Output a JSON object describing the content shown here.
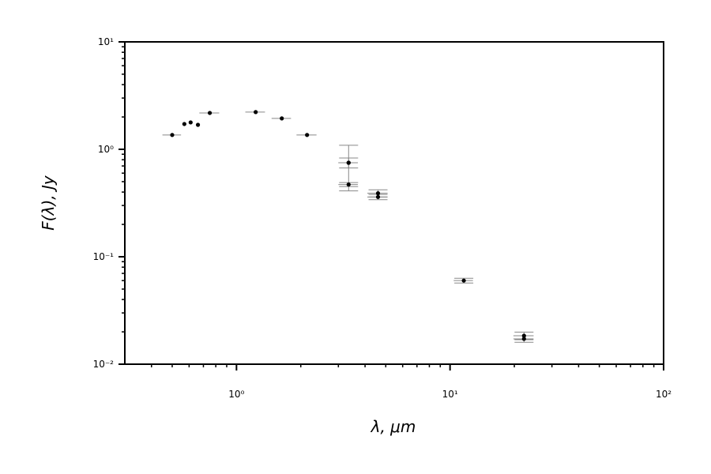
{
  "chart_data": {
    "type": "errorbar",
    "xlabel": "λ, μm",
    "ylabel": "F(λ), Jy",
    "xscale": "log",
    "yscale": "log",
    "xlim": [
      0.3,
      100
    ],
    "ylim": [
      0.01,
      10
    ],
    "xticks": [
      {
        "value": 1,
        "label": "10⁰"
      },
      {
        "value": 10,
        "label": "10¹"
      },
      {
        "value": 100,
        "label": "10²"
      }
    ],
    "yticks": [
      {
        "value": 0.01,
        "label": "10⁻²"
      },
      {
        "value": 0.1,
        "label": "10⁻¹"
      },
      {
        "value": 1,
        "label": "10⁰"
      },
      {
        "value": 10,
        "label": "10¹"
      }
    ],
    "xminorticks": [
      0.4,
      0.5,
      0.6,
      0.7,
      0.8,
      0.9,
      2,
      3,
      4,
      5,
      6,
      7,
      8,
      9,
      20,
      30,
      40,
      50,
      60,
      70,
      80,
      90
    ],
    "yminorticks": [
      0.02,
      0.03,
      0.04,
      0.05,
      0.06,
      0.07,
      0.08,
      0.09,
      0.2,
      0.3,
      0.4,
      0.5,
      0.6,
      0.7,
      0.8,
      0.9,
      2,
      3,
      4,
      5,
      6,
      7,
      8,
      9
    ],
    "color": "#000000",
    "errorbar_color": "#888888",
    "x": [
      0.5,
      0.57,
      0.61,
      0.66,
      0.75,
      1.23,
      1.63,
      2.14,
      3.35,
      3.35,
      3.35,
      4.6,
      4.6,
      11.6,
      22.2,
      22.2
    ],
    "values": [
      1.36,
      1.72,
      1.78,
      1.69,
      2.18,
      2.22,
      1.94,
      1.36,
      0.75,
      0.75,
      0.47,
      0.39,
      0.36,
      0.06,
      0.0184,
      0.0172
    ],
    "xerr": [
      0.05,
      null,
      null,
      null,
      0.08,
      0.13,
      0.17,
      0.23,
      0.35,
      0.35,
      0.35,
      0.5,
      0.5,
      1.2,
      2.4,
      2.4
    ],
    "yerr": [
      null,
      null,
      null,
      null,
      null,
      null,
      null,
      null,
      0.34,
      0.08,
      0.02,
      0.03,
      0.02,
      0.003,
      0.0015,
      0.0012
    ]
  }
}
